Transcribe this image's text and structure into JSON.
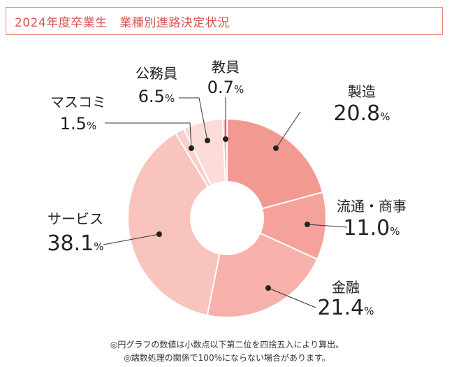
{
  "title": "2024年度卒業生　業種別進路決定状況",
  "chart_data": {
    "type": "pie",
    "variant": "donut",
    "unit": "%",
    "slices": [
      {
        "label": "製造",
        "value": 20.8,
        "color": "#f29a92"
      },
      {
        "label": "流通・商事",
        "value": 11.0,
        "color": "#f4a29b"
      },
      {
        "label": "金融",
        "value": 21.4,
        "color": "#f7b1aa"
      },
      {
        "label": "サービス",
        "value": 38.1,
        "color": "#f9c3be"
      },
      {
        "label": "マスコミ",
        "value": 1.5,
        "color": "#fbd0cc"
      },
      {
        "label": "公務員",
        "value": 6.5,
        "color": "#fcdcd8"
      },
      {
        "label": "教員",
        "value": 0.7,
        "color": "#f7b8b1"
      }
    ]
  },
  "notes": [
    "◎円グラフの数値は小数点以下第二位を四捨五入により算出。",
    "◎端数処理の関係で100%にならない場合があります。"
  ]
}
